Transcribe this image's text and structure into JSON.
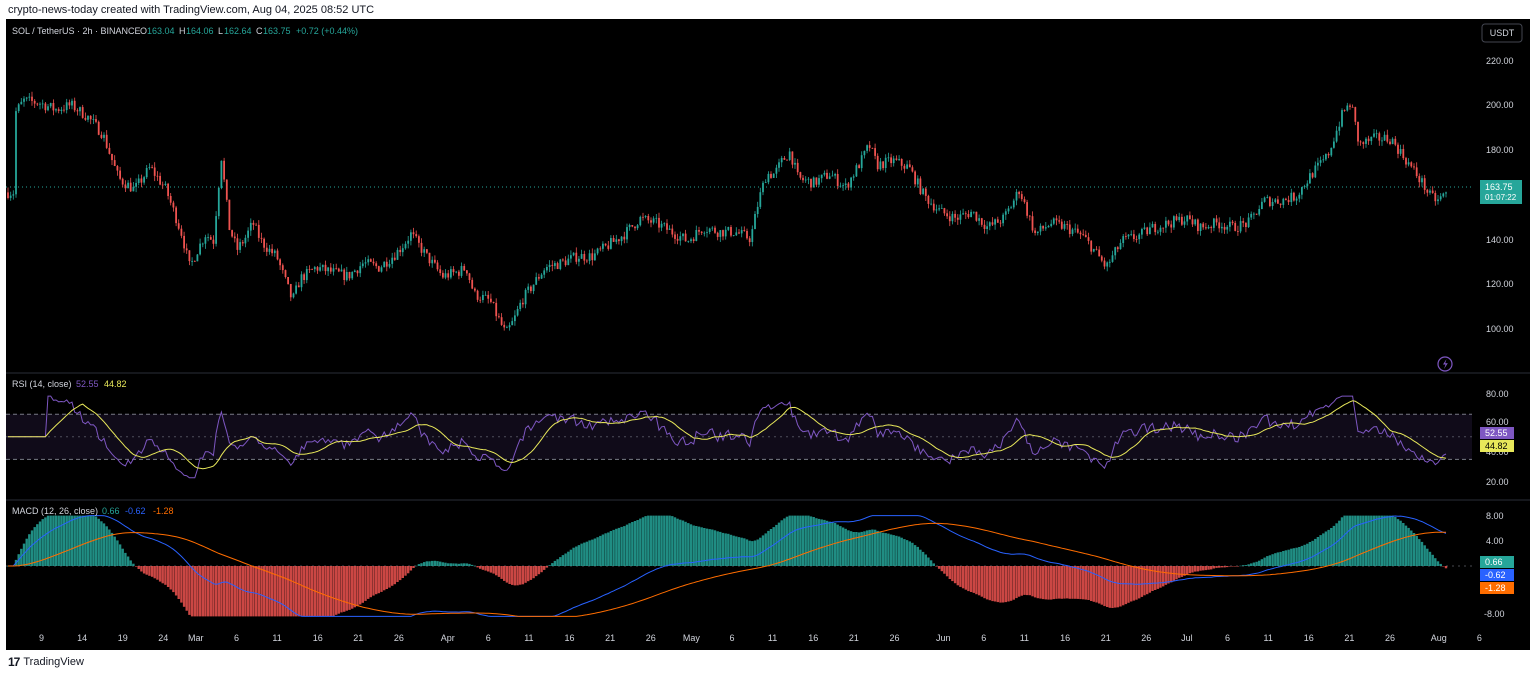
{
  "header": {
    "credit": "crypto-news-today created with TradingView.com, Aug 04, 2025 08:52 UTC"
  },
  "footer": {
    "brand": "TradingView",
    "brand_icon": "tradingview-logo-icon"
  },
  "colors": {
    "background": "#000000",
    "up": "#26a69a",
    "down": "#ef5350",
    "rsi_line": "#7e57c2",
    "rsi_ma": "#e8e85a",
    "macd_line": "#2962ff",
    "signal_line": "#ff6d00",
    "hist_pos": "#26a69a",
    "hist_neg": "#ef5350",
    "text": "#d1d4dc",
    "grid_dashed": "#787b86",
    "price_badge": "#26a69a"
  },
  "price_pane": {
    "symbol": "SOL / TetherUS · 2h · BINANCE",
    "ohlc": [
      {
        "label": "O",
        "value": "163.04"
      },
      {
        "label": "H",
        "value": "164.06"
      },
      {
        "label": "L",
        "value": "162.64"
      },
      {
        "label": "C",
        "value": "163.75"
      }
    ],
    "change": "+0.72 (+0.44%)",
    "currency": "USDT",
    "last_price": "163.75",
    "countdown": "01:07:22",
    "lightning_icon": "lightning-icon"
  },
  "rsi_pane": {
    "label": "RSI (14, close)",
    "value": "52.55",
    "ma_value": "44.82",
    "badge_value": "52.55",
    "badge_ma": "44.82"
  },
  "macd_pane": {
    "label": "MACD (12, 26, close)",
    "hist": "0.66",
    "macd": "-0.62",
    "signal": "-1.28",
    "badge_hist": "0.66",
    "badge_macd": "-0.62",
    "badge_signal": "-1.28"
  },
  "chart_data": [
    {
      "type": "line",
      "title": "SOL / TetherUS · 2h · BINANCE",
      "series": [
        {
          "name": "SOL / TetherUS",
          "points": [
            [
              "Feb 4",
              200
            ],
            [
              "Feb 5",
              205
            ],
            [
              "Feb 7",
              204
            ],
            [
              "Feb 9",
              201
            ],
            [
              "Feb 11",
              203
            ],
            [
              "Feb 13",
              198
            ],
            [
              "Feb 15",
              190
            ],
            [
              "Feb 17",
              170
            ],
            [
              "Feb 19",
              165
            ],
            [
              "Feb 21",
              175
            ],
            [
              "Feb 23",
              165
            ],
            [
              "Feb 25",
              145
            ],
            [
              "Feb 26",
              130
            ],
            [
              "Feb 27",
              138
            ],
            [
              "Feb 28",
              145
            ],
            [
              "Mar 1",
              142
            ],
            [
              "Mar 2",
              180
            ],
            [
              "Mar 3",
              148
            ],
            [
              "Mar 4",
              138
            ],
            [
              "Mar 5",
              143
            ],
            [
              "Mar 6",
              150
            ],
            [
              "Mar 7",
              142
            ],
            [
              "Mar 8",
              138
            ],
            [
              "Mar 9",
              135
            ],
            [
              "Mar 10",
              125
            ],
            [
              "Mar 11",
              115
            ],
            [
              "Mar 12",
              125
            ],
            [
              "Mar 14",
              130
            ],
            [
              "Mar 16",
              128
            ],
            [
              "Mar 18",
              126
            ],
            [
              "Mar 20",
              132
            ],
            [
              "Mar 22",
              130
            ],
            [
              "Mar 24",
              136
            ],
            [
              "Mar 25",
              140
            ],
            [
              "Mar 26",
              145
            ],
            [
              "Mar 28",
              135
            ],
            [
              "Mar 30",
              126
            ],
            [
              "Apr 1",
              128
            ],
            [
              "Apr 2",
              130
            ],
            [
              "Apr 3",
              118
            ],
            [
              "Apr 5",
              115
            ],
            [
              "Apr 7",
              100
            ],
            [
              "Apr 8",
              106
            ],
            [
              "Apr 9",
              115
            ],
            [
              "Apr 10",
              120
            ],
            [
              "Apr 12",
              130
            ],
            [
              "Apr 14",
              132
            ],
            [
              "Apr 16",
              135
            ],
            [
              "Apr 18",
              135
            ],
            [
              "Apr 20",
              140
            ],
            [
              "Apr 22",
              145
            ],
            [
              "Apr 24",
              152
            ],
            [
              "Apr 26",
              150
            ],
            [
              "Apr 28",
              146
            ],
            [
              "Apr 30",
              142
            ],
            [
              "May 2",
              148
            ],
            [
              "May 4",
              146
            ],
            [
              "May 6",
              146
            ],
            [
              "May 8",
              143
            ],
            [
              "May 9",
              160
            ],
            [
              "May 10",
              172
            ],
            [
              "May 11",
              172
            ],
            [
              "May 12",
              178
            ],
            [
              "May 13",
              182
            ],
            [
              "May 14",
              170
            ],
            [
              "May 16",
              168
            ],
            [
              "May 18",
              172
            ],
            [
              "May 20",
              166
            ],
            [
              "May 22",
              178
            ],
            [
              "May 23",
              185
            ],
            [
              "May 24",
              176
            ],
            [
              "May 26",
              178
            ],
            [
              "May 28",
              175
            ],
            [
              "May 30",
              162
            ],
            [
              "Jun 1",
              155
            ],
            [
              "Jun 3",
              152
            ],
            [
              "Jun 5",
              155
            ],
            [
              "Jun 7",
              148
            ],
            [
              "Jun 9",
              152
            ],
            [
              "Jun 10",
              158
            ],
            [
              "Jun 11",
              165
            ],
            [
              "Jun 12",
              155
            ],
            [
              "Jun 13",
              145
            ],
            [
              "Jun 15",
              150
            ],
            [
              "Jun 17",
              148
            ],
            [
              "Jun 19",
              144
            ],
            [
              "Jun 20",
              140
            ],
            [
              "Jun 22",
              130
            ],
            [
              "Jun 24",
              142
            ],
            [
              "Jun 26",
              144
            ],
            [
              "Jun 28",
              148
            ],
            [
              "Jun 30",
              150
            ],
            [
              "Jul 2",
              152
            ],
            [
              "Jul 4",
              148
            ],
            [
              "Jul 6",
              150
            ],
            [
              "Jul 8",
              148
            ],
            [
              "Jul 10",
              150
            ],
            [
              "Jul 12",
              160
            ],
            [
              "Jul 14",
              160
            ],
            [
              "Jul 16",
              162
            ],
            [
              "Jul 18",
              172
            ],
            [
              "Jul 20",
              180
            ],
            [
              "Jul 22",
              200
            ],
            [
              "Jul 23",
              204
            ],
            [
              "Jul 24",
              185
            ],
            [
              "Jul 26",
              188
            ],
            [
              "Jul 28",
              188
            ],
            [
              "Jul 30",
              178
            ],
            [
              "Aug 1",
              168
            ],
            [
              "Aug 2",
              162
            ],
            [
              "Aug 3",
              160
            ],
            [
              "Aug 4",
              163.75
            ]
          ]
        }
      ],
      "y_ticks": [
        "220.00",
        "200.00",
        "180.00",
        "140.00",
        "120.00",
        "100.00"
      ],
      "ylim": [
        92,
        230
      ],
      "current_price": 163.75
    },
    {
      "type": "line",
      "title": "RSI (14, close)",
      "series": [
        {
          "name": "RSI"
        },
        {
          "name": "RSI MA"
        }
      ],
      "y_ticks": [
        "80.00",
        "60.00",
        "40.00",
        "20.00"
      ],
      "ylim": [
        10,
        87
      ],
      "bands": [
        70,
        50,
        30
      ]
    },
    {
      "type": "bar",
      "title": "MACD (12, 26, close)",
      "series": [
        {
          "name": "Histogram"
        },
        {
          "name": "MACD"
        },
        {
          "name": "Signal"
        }
      ],
      "y_ticks": [
        "8.00",
        "4.00",
        "-8.00"
      ],
      "ylim": [
        -10,
        10
      ]
    }
  ],
  "x_axis": {
    "ticks": [
      {
        "label": "9",
        "pos": 9
      },
      {
        "label": "14",
        "pos": 14
      },
      {
        "label": "19",
        "pos": 19
      },
      {
        "label": "24",
        "pos": 24
      },
      {
        "label": "Mar",
        "pos": 28
      },
      {
        "label": "6",
        "pos": 33
      },
      {
        "label": "11",
        "pos": 38
      },
      {
        "label": "16",
        "pos": 43
      },
      {
        "label": "21",
        "pos": 48
      },
      {
        "label": "26",
        "pos": 53
      },
      {
        "label": "Apr",
        "pos": 59
      },
      {
        "label": "6",
        "pos": 64
      },
      {
        "label": "11",
        "pos": 69
      },
      {
        "label": "16",
        "pos": 74
      },
      {
        "label": "21",
        "pos": 79
      },
      {
        "label": "26",
        "pos": 84
      },
      {
        "label": "May",
        "pos": 89
      },
      {
        "label": "6",
        "pos": 94
      },
      {
        "label": "11",
        "pos": 99
      },
      {
        "label": "16",
        "pos": 104
      },
      {
        "label": "21",
        "pos": 109
      },
      {
        "label": "26",
        "pos": 114
      },
      {
        "label": "Jun",
        "pos": 120
      },
      {
        "label": "6",
        "pos": 125
      },
      {
        "label": "11",
        "pos": 130
      },
      {
        "label": "16",
        "pos": 135
      },
      {
        "label": "21",
        "pos": 140
      },
      {
        "label": "26",
        "pos": 145
      },
      {
        "label": "Jul",
        "pos": 150
      },
      {
        "label": "6",
        "pos": 155
      },
      {
        "label": "11",
        "pos": 160
      },
      {
        "label": "16",
        "pos": 165
      },
      {
        "label": "21",
        "pos": 170
      },
      {
        "label": "26",
        "pos": 175
      },
      {
        "label": "Aug",
        "pos": 181
      },
      {
        "label": "6",
        "pos": 186
      }
    ]
  }
}
